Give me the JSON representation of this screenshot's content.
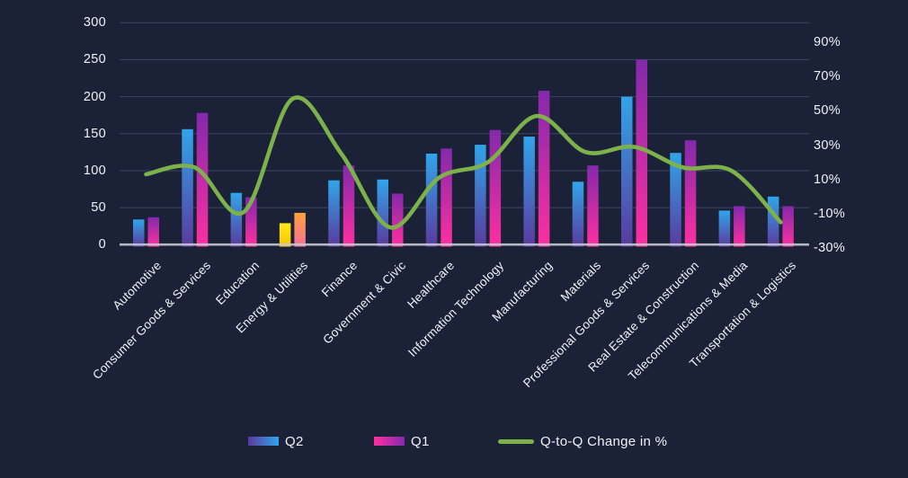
{
  "chart_data": {
    "type": "combo-bar-line",
    "title": "",
    "categories": [
      "Automotive",
      "Consumer Goods & Services",
      "Education",
      "Energy & Utilities",
      "Finance",
      "Government & Civic",
      "Healthcare",
      "Information Technology",
      "Manufacturing",
      "Materials",
      "Professional Goods & Services",
      "Real Estate & Construction",
      "Telecommunications & Media",
      "Transportation & Logistics"
    ],
    "series": [
      {
        "name": "Q2",
        "type": "bar",
        "axis": "left",
        "values": [
          34,
          156,
          70,
          29,
          87,
          88,
          123,
          135,
          146,
          85,
          200,
          124,
          46,
          65
        ]
      },
      {
        "name": "Q1",
        "type": "bar",
        "axis": "left",
        "values": [
          37,
          178,
          64,
          43,
          107,
          69,
          130,
          155,
          208,
          107,
          250,
          141,
          52,
          52
        ]
      },
      {
        "name": "Q-to-Q Change in %",
        "type": "line",
        "axis": "right",
        "values": [
          13,
          17,
          -9,
          57,
          25,
          -18,
          11,
          20,
          47,
          26,
          29,
          17,
          15,
          -15
        ]
      }
    ],
    "highlighted_category": "Energy & Utilities",
    "left_axis": {
      "tick_labels": [
        "300",
        "250",
        "200",
        "150",
        "100",
        "50",
        "0"
      ],
      "min": 0,
      "max": 300
    },
    "right_axis": {
      "tick_labels": [
        "90%",
        "70%",
        "50%",
        "30%",
        "10%",
        "-10%",
        "-30%"
      ],
      "min": -30,
      "max": 90
    },
    "grid": true,
    "legend_position": "bottom"
  },
  "colors": {
    "background": "#1b2137",
    "gridline": "#3e4562",
    "baseline": "#c6c9d2",
    "axis_text": "#f2f3f7",
    "line": "#7cb249",
    "q2_top": "#31a5ea",
    "q2_bottom": "#5a3a9e",
    "q1_top": "#8329ac",
    "q1_bottom": "#ff2fa0",
    "highlight_q2_top": "#ffe919",
    "highlight_q2_bottom": "#fdc500",
    "highlight_q1_top": "#ffa13b",
    "highlight_q1_bottom": "#f76e97"
  }
}
